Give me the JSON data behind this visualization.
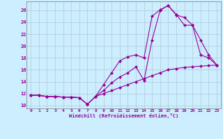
{
  "xlabel": "Windchill (Refroidissement éolien,°C)",
  "background_color": "#cceeff",
  "line_color": "#990099",
  "grid_color": "#b0c8d8",
  "xlim": [
    -0.5,
    23.5
  ],
  "ylim": [
    9.5,
    27.5
  ],
  "yticks": [
    10,
    12,
    14,
    16,
    18,
    20,
    22,
    24,
    26
  ],
  "xticks": [
    0,
    1,
    2,
    3,
    4,
    5,
    6,
    7,
    8,
    9,
    10,
    11,
    12,
    13,
    14,
    15,
    16,
    17,
    18,
    19,
    20,
    21,
    22,
    23
  ],
  "curve1_x": [
    0,
    1,
    2,
    3,
    4,
    5,
    6,
    7,
    8,
    9,
    10,
    11,
    12,
    13,
    14,
    15,
    16,
    17,
    18,
    19,
    20,
    21,
    22,
    23
  ],
  "curve1_y": [
    11.7,
    11.7,
    11.5,
    11.5,
    11.4,
    11.4,
    11.3,
    10.2,
    11.5,
    12.0,
    12.5,
    13.0,
    13.5,
    14.0,
    14.5,
    15.0,
    15.5,
    16.0,
    16.2,
    16.4,
    16.5,
    16.6,
    16.7,
    16.8
  ],
  "curve2_x": [
    0,
    1,
    2,
    3,
    4,
    5,
    6,
    7,
    8,
    9,
    10,
    11,
    12,
    13,
    14,
    15,
    16,
    17,
    18,
    19,
    20,
    21,
    22,
    23
  ],
  "curve2_y": [
    11.7,
    11.7,
    11.5,
    11.5,
    11.4,
    11.4,
    11.3,
    10.2,
    11.5,
    13.5,
    15.5,
    17.5,
    18.2,
    18.5,
    18.0,
    25.0,
    26.1,
    26.8,
    25.2,
    24.8,
    23.5,
    18.5,
    18.0,
    16.8
  ],
  "curve3_x": [
    0,
    1,
    2,
    3,
    4,
    5,
    6,
    7,
    8,
    9,
    10,
    11,
    12,
    13,
    14,
    15,
    16,
    17,
    18,
    19,
    20,
    21,
    22,
    23
  ],
  "curve3_y": [
    11.7,
    11.7,
    11.5,
    11.5,
    11.4,
    11.4,
    11.3,
    10.2,
    11.5,
    12.5,
    13.8,
    14.8,
    15.5,
    16.5,
    14.2,
    21.0,
    26.0,
    26.8,
    25.3,
    23.5,
    23.5,
    21.0,
    18.5,
    16.8
  ]
}
